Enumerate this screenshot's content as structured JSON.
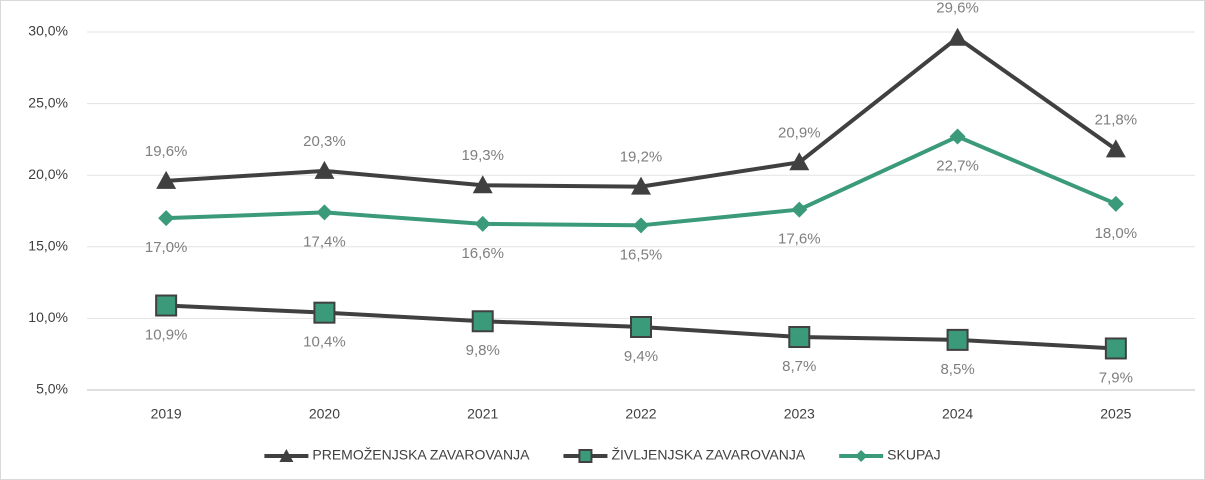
{
  "chart_data": {
    "type": "line",
    "categories": [
      "2019",
      "2020",
      "2021",
      "2022",
      "2023",
      "2024",
      "2025"
    ],
    "series": [
      {
        "name": "PREMOŽENJSKA ZAVAROVANJA",
        "color": "#404040",
        "marker": "triangle",
        "label_position": "above",
        "values": [
          19.6,
          20.3,
          19.3,
          19.2,
          20.9,
          29.6,
          21.8
        ],
        "value_labels": [
          "19,6%",
          "20,3%",
          "19,3%",
          "19,2%",
          "20,9%",
          "29,6%",
          "21,8%"
        ]
      },
      {
        "name": "ŽIVLJENJSKA ZAVAROVANJA",
        "color": "#404040",
        "marker_fill": "#3a9a7a",
        "marker": "square",
        "label_position": "below",
        "values": [
          10.9,
          10.4,
          9.8,
          9.4,
          8.7,
          8.5,
          7.9
        ],
        "value_labels": [
          "10,9%",
          "10,4%",
          "9,8%",
          "9,4%",
          "8,7%",
          "8,5%",
          "7,9%"
        ]
      },
      {
        "name": "SKUPAJ",
        "color": "#3a9a7a",
        "marker": "diamond",
        "label_position": "below",
        "values": [
          17.0,
          17.4,
          16.6,
          16.5,
          17.6,
          22.7,
          18.0
        ],
        "value_labels": [
          "17,0%",
          "17,4%",
          "16,6%",
          "16,5%",
          "17,6%",
          "22,7%",
          "18,0%"
        ]
      }
    ],
    "ylim": [
      5,
      30
    ],
    "yticks": [
      {
        "value": 5,
        "label": "5,0%"
      },
      {
        "value": 10,
        "label": "10,0%"
      },
      {
        "value": 15,
        "label": "15,0%"
      },
      {
        "value": 20,
        "label": "20,0%"
      },
      {
        "value": 25,
        "label": "25,0%"
      },
      {
        "value": 30,
        "label": "30,0%"
      }
    ],
    "grid": true,
    "legend": "bottom"
  }
}
